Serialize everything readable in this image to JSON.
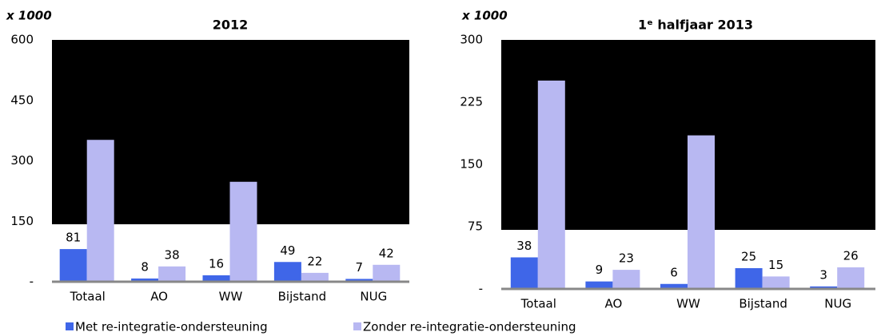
{
  "chart_data": [
    {
      "type": "bar",
      "title": "2012",
      "unit_label": "x 1000",
      "categories": [
        "Totaal",
        "AO",
        "WW",
        "Bijstand",
        "NUG"
      ],
      "series": [
        {
          "name": "Met re-integratie-ondersteuning",
          "color": "#3f66e8",
          "values": [
            81,
            8,
            16,
            49,
            7
          ]
        },
        {
          "name": "Zonder re-integratie-ondersteuning",
          "color": "#b8b8f2",
          "values": [
            352,
            38,
            248,
            22,
            42
          ]
        }
      ],
      "ylim": [
        0,
        600
      ],
      "yticks": [
        {
          "value": 0,
          "label": "-"
        },
        150,
        300,
        450,
        600
      ]
    },
    {
      "type": "bar",
      "title": "1ᵉ halfjaar 2013",
      "unit_label": "x 1000",
      "categories": [
        "Totaal",
        "AO",
        "WW",
        "Bijstand",
        "NUG"
      ],
      "series": [
        {
          "name": "Met re-integratie-ondersteuning",
          "color": "#3f66e8",
          "values": [
            38,
            9,
            6,
            25,
            3
          ]
        },
        {
          "name": "Zonder re-integratie-ondersteuning",
          "color": "#b8b8f2",
          "values": [
            251,
            23,
            185,
            15,
            26
          ]
        }
      ],
      "ylim": [
        0,
        300
      ],
      "yticks": [
        {
          "value": 0,
          "label": "-"
        },
        75,
        150,
        225,
        300
      ]
    }
  ]
}
